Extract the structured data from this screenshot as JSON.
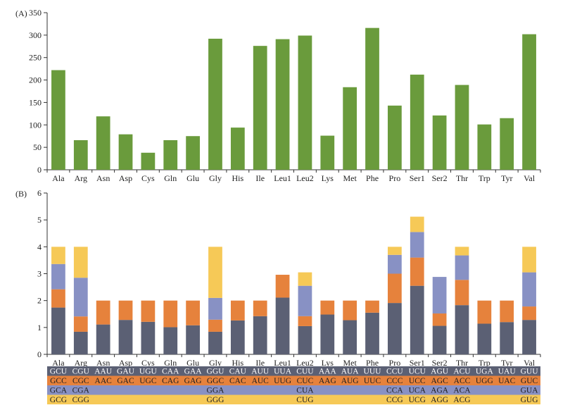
{
  "chart_data": [
    {
      "type": "bar",
      "panel_label": "(A)",
      "categories": [
        "Ala",
        "Arg",
        "Asn",
        "Asp",
        "Cys",
        "Gln",
        "Glu",
        "Gly",
        "His",
        "Ile",
        "Leu1",
        "Leu2",
        "Lys",
        "Met",
        "Phe",
        "Pro",
        "Ser1",
        "Ser2",
        "Thr",
        "Trp",
        "Tyr",
        "Val"
      ],
      "values": [
        222,
        66,
        119,
        79,
        38,
        66,
        75,
        292,
        94,
        276,
        291,
        299,
        76,
        184,
        316,
        143,
        212,
        121,
        189,
        101,
        115,
        302
      ],
      "ylim": [
        0,
        350
      ],
      "yticks": [
        0,
        50,
        100,
        150,
        200,
        250,
        300,
        350
      ],
      "color": "#6a9b3c"
    },
    {
      "type": "bar",
      "stacked": true,
      "panel_label": "(B)",
      "categories": [
        "Ala",
        "Arg",
        "Asn",
        "Asp",
        "Cys",
        "Gln",
        "Glu",
        "Gly",
        "His",
        "Ile",
        "Leu1",
        "Leu2",
        "Lys",
        "Met",
        "Phe",
        "Pro",
        "Ser1",
        "Ser2",
        "Thr",
        "Trp",
        "Tyr",
        "Val"
      ],
      "ylim": [
        0,
        6
      ],
      "yticks": [
        0,
        1,
        2,
        3,
        4,
        5,
        6
      ],
      "series": [
        {
          "color": "#5b6074",
          "values": [
            1.74,
            0.84,
            1.11,
            1.28,
            1.21,
            1.01,
            1.08,
            0.84,
            1.26,
            1.42,
            2.11,
            1.05,
            1.48,
            1.27,
            1.55,
            1.91,
            2.55,
            1.06,
            1.83,
            1.14,
            1.2,
            1.28
          ]
        },
        {
          "color": "#e6823c",
          "values": [
            0.68,
            0.57,
            0.89,
            0.72,
            0.79,
            0.99,
            0.92,
            0.45,
            0.74,
            0.58,
            0.85,
            0.37,
            0.52,
            0.73,
            0.45,
            1.09,
            1.05,
            0.46,
            0.94,
            0.86,
            0.8,
            0.5
          ]
        },
        {
          "color": "#8891c4",
          "values": [
            0.94,
            1.44,
            0,
            0,
            0,
            0,
            0,
            0.81,
            0,
            0,
            0,
            1.13,
            0,
            0,
            0,
            0.7,
            0.95,
            1.36,
            0.91,
            0,
            0,
            1.27
          ]
        },
        {
          "color": "#f6c957",
          "values": [
            0.64,
            1.15,
            0,
            0,
            0,
            0,
            0,
            1.9,
            0,
            0,
            0,
            0.5,
            0,
            0,
            0,
            0.3,
            0.57,
            0,
            0.32,
            0,
            0,
            0.95
          ]
        }
      ]
    }
  ],
  "codon_table": {
    "rows": [
      {
        "color": "#5b6074",
        "cells": [
          "GCU",
          "CGU",
          "AAU",
          "GAU",
          "UGU",
          "CAA",
          "GAA",
          "GGU",
          "CAU",
          "AUU",
          "UUA",
          "CUU",
          "AAA",
          "AUA",
          "UUU",
          "CCU",
          "UCU",
          "AGU",
          "ACU",
          "UGA",
          "UAU",
          "GUU"
        ]
      },
      {
        "color": "#e6823c",
        "cells": [
          "GCC",
          "CGC",
          "AAC",
          "GAC",
          "UGC",
          "CAG",
          "GAG",
          "GGC",
          "CAC",
          "AUC",
          "UUG",
          "CUC",
          "AAG",
          "AUG",
          "UUC",
          "CCC",
          "UCC",
          "AGC",
          "ACC",
          "UGG",
          "UAC",
          "GUC"
        ]
      },
      {
        "color": "#8891c4",
        "cells": [
          "GCA",
          "CGA",
          "",
          "",
          "",
          "",
          "",
          "GGA",
          "",
          "",
          "",
          "CUA",
          "",
          "",
          "",
          "CCA",
          "UCA",
          "AGA",
          "ACA",
          "",
          "",
          "GUA"
        ]
      },
      {
        "color": "#f6c957",
        "cells": [
          "GCG",
          "CGG",
          "",
          "",
          "",
          "",
          "",
          "GGG",
          "",
          "",
          "",
          "CUG",
          "",
          "",
          "",
          "CCG",
          "UCG",
          "AGG",
          "ACG",
          "",
          "",
          "GUG"
        ]
      }
    ]
  }
}
